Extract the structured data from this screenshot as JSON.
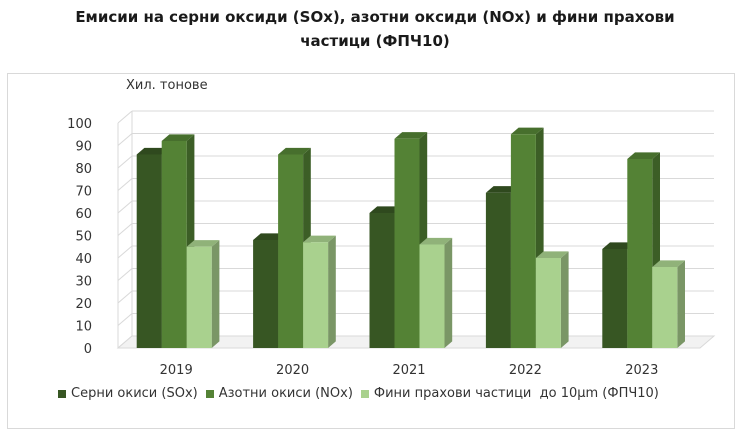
{
  "title_line1": "Емисии на серни оксиди (SOx), азотни оксиди (NOx) и фини прахови",
  "title_line2": "частици (ФПЧ10)",
  "chart_data": {
    "type": "bar",
    "title": "Емисии на серни оксиди (SOx), азотни оксиди (NOx) и фини прахови частици (ФПЧ10)",
    "ylabel": "Хил. тонове",
    "xlabel": "",
    "ylim": [
      0,
      100
    ],
    "yticks": [
      0,
      10,
      20,
      30,
      40,
      50,
      60,
      70,
      80,
      90,
      100
    ],
    "grid": true,
    "legend_position": "bottom",
    "categories": [
      "2019",
      "2020",
      "2021",
      "2022",
      "2023"
    ],
    "series": [
      {
        "name": "Серни окиси (SOx)",
        "color": "#375623",
        "values": [
          86,
          48,
          60,
          69,
          44
        ]
      },
      {
        "name": "Азотни окиси (NOx)",
        "color": "#548235",
        "values": [
          92,
          86,
          93,
          95,
          84
        ]
      },
      {
        "name": "Фини прахови частици  до 10µm (ФПЧ10)",
        "color": "#a9d18e",
        "values": [
          45,
          47,
          46,
          40,
          36
        ]
      }
    ]
  }
}
